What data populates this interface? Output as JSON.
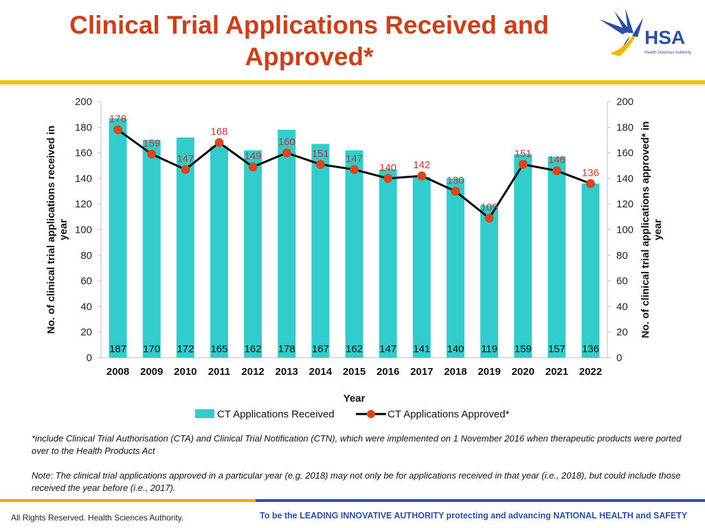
{
  "page": {
    "title_line1": "Clinical Trial Applications Received and",
    "title_line2": "Approved*"
  },
  "logo": {
    "text": "HSA",
    "subtext": "Health Sciences Authority"
  },
  "footnotes": {
    "note1": "*include Clinical Trial Authorisation (CTA) and Clinical Trial Notification (CTN), which were implemented on 1 November 2016 when therapeutic products were ported over to the Health Products Act",
    "note2": "Note: The clinical trial applications approved in a particular year (e.g. 2018) may not only be for applications received in that year (i.e., 2018), but could include those received the year before (i.e., 2017)."
  },
  "footer": {
    "left": "All Rights Reserved. Health Sciences Authority.",
    "right": "To be the LEADING INNOVATIVE AUTHORITY protecting and advancing NATIONAL HEALTH and SAFETY"
  },
  "colors": {
    "title": "#C8411A",
    "bar": "#33CCCC",
    "line": "#000000",
    "marker": "#D9471C",
    "approved_label": "#C0392B",
    "gold": "#F2C200",
    "footer_blue": "#2C4FA3"
  },
  "chart_data": {
    "type": "bar+line",
    "categories": [
      "2008",
      "2009",
      "2010",
      "2011",
      "2012",
      "2013",
      "2014",
      "2015",
      "2016",
      "2017",
      "2018",
      "2019",
      "2020",
      "2021",
      "2022"
    ],
    "series": [
      {
        "name": "CT Applications Received",
        "type": "bar",
        "axis": "left",
        "values": [
          187,
          170,
          172,
          165,
          162,
          178,
          167,
          162,
          147,
          141,
          140,
          119,
          159,
          157,
          136
        ]
      },
      {
        "name": "CT Applications Approved*",
        "type": "line",
        "axis": "right",
        "values": [
          178,
          159,
          147,
          168,
          149,
          160,
          151,
          147,
          140,
          142,
          130,
          109,
          151,
          146,
          136
        ]
      }
    ],
    "xlabel": "Year",
    "ylabel_left": "No. of clinical trial applications received in year",
    "ylabel_right": "No. of clinical trial applications approved* in year",
    "ylim": [
      0,
      200
    ],
    "yticks": [
      0,
      20,
      40,
      60,
      80,
      100,
      120,
      140,
      160,
      180,
      200
    ],
    "grid": false,
    "legend": "bottom"
  }
}
